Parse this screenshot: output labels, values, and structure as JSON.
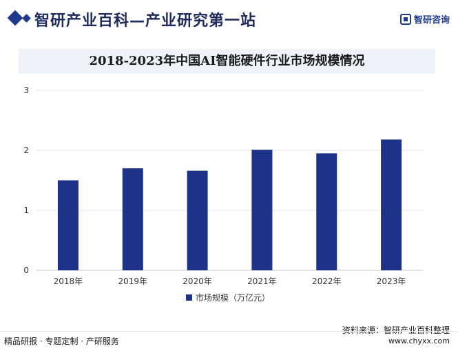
{
  "header": {
    "title": "智研产业百科—产业研究第一站",
    "brand_name": "智研咨询"
  },
  "footer": {
    "tagline": "精品研报 · 专题定制 · 产研服务",
    "source": "资料来源：智研产业百科整理",
    "url": "www.chyxx.com"
  },
  "colors": {
    "bar": "#1c3387",
    "header_accent": "#1f3a8a",
    "title_band": "#eef2f9"
  },
  "chart_data": {
    "type": "bar",
    "title": "2018-2023年中国AI智能硬件行业市场规模情况",
    "categories": [
      "2018年",
      "2019年",
      "2020年",
      "2021年",
      "2022年",
      "2023年"
    ],
    "series": [
      {
        "name": "市场规模（万亿元）",
        "values": [
          1.5,
          1.7,
          1.66,
          2.01,
          1.95,
          2.18
        ]
      }
    ],
    "ylim": [
      0,
      3
    ],
    "yticks": [
      0,
      1,
      2,
      3
    ],
    "grid": true,
    "legend": "bottom"
  }
}
